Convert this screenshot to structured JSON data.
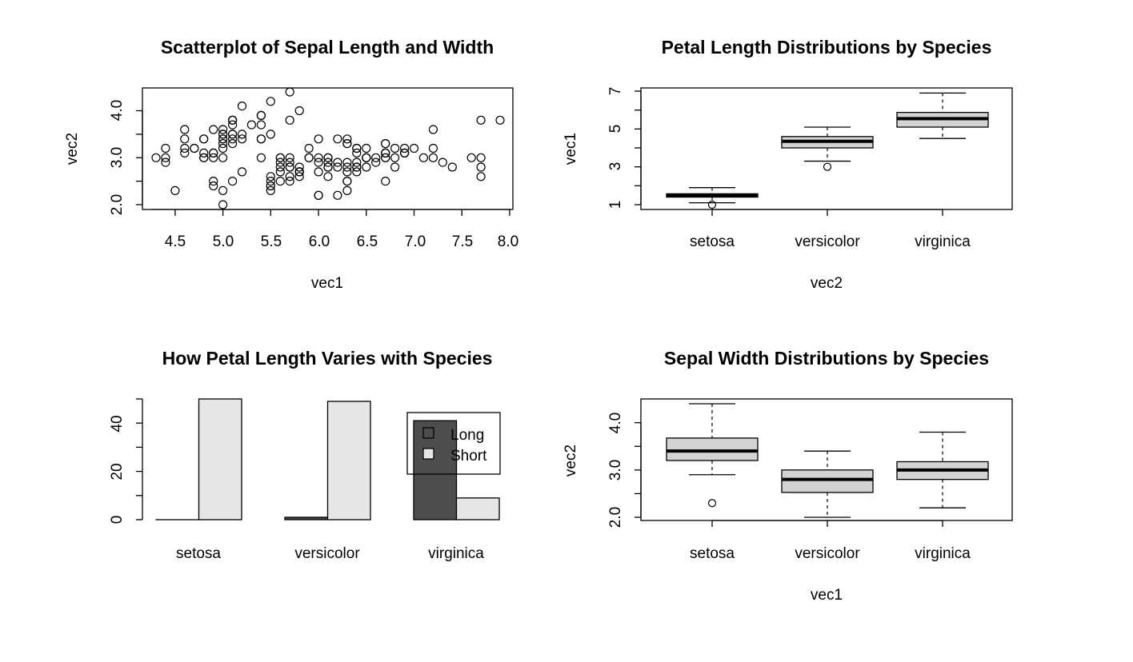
{
  "chart_data": [
    {
      "type": "scatter",
      "title": "Scatterplot of Sepal Length and Width",
      "xlabel": "vec1",
      "ylabel": "vec2",
      "xlim": [
        4.3,
        7.9
      ],
      "ylim": [
        2.0,
        4.4
      ],
      "xticks": [
        "4.5",
        "5.0",
        "5.5",
        "6.0",
        "6.5",
        "7.0",
        "7.5",
        "8.0"
      ],
      "yticks": [
        "2.0",
        "3.0",
        "4.0"
      ],
      "points": [
        [
          5.1,
          3.5
        ],
        [
          4.9,
          3.0
        ],
        [
          4.7,
          3.2
        ],
        [
          4.6,
          3.1
        ],
        [
          5.0,
          3.6
        ],
        [
          5.4,
          3.9
        ],
        [
          4.6,
          3.4
        ],
        [
          5.0,
          3.4
        ],
        [
          4.4,
          2.9
        ],
        [
          4.9,
          3.1
        ],
        [
          5.4,
          3.7
        ],
        [
          4.8,
          3.4
        ],
        [
          4.8,
          3.0
        ],
        [
          4.3,
          3.0
        ],
        [
          5.8,
          4.0
        ],
        [
          5.7,
          4.4
        ],
        [
          5.4,
          3.9
        ],
        [
          5.1,
          3.5
        ],
        [
          5.7,
          3.8
        ],
        [
          5.1,
          3.8
        ],
        [
          5.4,
          3.4
        ],
        [
          5.1,
          3.7
        ],
        [
          4.6,
          3.6
        ],
        [
          5.1,
          3.3
        ],
        [
          4.8,
          3.4
        ],
        [
          5.0,
          3.0
        ],
        [
          5.0,
          3.4
        ],
        [
          5.2,
          3.5
        ],
        [
          5.2,
          3.4
        ],
        [
          4.7,
          3.2
        ],
        [
          4.8,
          3.1
        ],
        [
          5.4,
          3.4
        ],
        [
          5.2,
          4.1
        ],
        [
          5.5,
          4.2
        ],
        [
          4.9,
          3.1
        ],
        [
          5.0,
          3.2
        ],
        [
          5.5,
          3.5
        ],
        [
          4.9,
          3.6
        ],
        [
          4.4,
          3.0
        ],
        [
          5.1,
          3.4
        ],
        [
          5.0,
          3.5
        ],
        [
          4.5,
          2.3
        ],
        [
          4.4,
          3.2
        ],
        [
          5.0,
          3.5
        ],
        [
          5.1,
          3.8
        ],
        [
          4.8,
          3.0
        ],
        [
          5.1,
          3.8
        ],
        [
          4.6,
          3.2
        ],
        [
          5.3,
          3.7
        ],
        [
          5.0,
          3.3
        ],
        [
          7.0,
          3.2
        ],
        [
          6.4,
          3.2
        ],
        [
          6.9,
          3.1
        ],
        [
          5.5,
          2.3
        ],
        [
          6.5,
          2.8
        ],
        [
          5.7,
          2.8
        ],
        [
          6.3,
          3.3
        ],
        [
          4.9,
          2.4
        ],
        [
          6.6,
          2.9
        ],
        [
          5.2,
          2.7
        ],
        [
          5.0,
          2.0
        ],
        [
          5.9,
          3.0
        ],
        [
          6.0,
          2.2
        ],
        [
          6.1,
          2.9
        ],
        [
          5.6,
          2.9
        ],
        [
          6.7,
          3.1
        ],
        [
          5.6,
          3.0
        ],
        [
          5.8,
          2.7
        ],
        [
          6.2,
          2.2
        ],
        [
          5.6,
          2.5
        ],
        [
          5.9,
          3.2
        ],
        [
          6.1,
          2.8
        ],
        [
          6.3,
          2.5
        ],
        [
          6.1,
          2.8
        ],
        [
          6.4,
          2.9
        ],
        [
          6.6,
          3.0
        ],
        [
          6.8,
          2.8
        ],
        [
          6.7,
          3.0
        ],
        [
          6.0,
          2.9
        ],
        [
          5.7,
          2.6
        ],
        [
          5.5,
          2.4
        ],
        [
          5.5,
          2.4
        ],
        [
          5.8,
          2.7
        ],
        [
          6.0,
          2.7
        ],
        [
          5.4,
          3.0
        ],
        [
          6.0,
          3.4
        ],
        [
          6.7,
          3.1
        ],
        [
          6.3,
          2.3
        ],
        [
          5.6,
          3.0
        ],
        [
          5.5,
          2.5
        ],
        [
          5.5,
          2.6
        ],
        [
          6.1,
          3.0
        ],
        [
          5.8,
          2.6
        ],
        [
          5.0,
          2.3
        ],
        [
          5.6,
          2.7
        ],
        [
          5.7,
          3.0
        ],
        [
          5.7,
          2.9
        ],
        [
          6.2,
          2.9
        ],
        [
          5.1,
          2.5
        ],
        [
          5.7,
          2.8
        ],
        [
          6.3,
          3.3
        ],
        [
          5.8,
          2.7
        ],
        [
          7.1,
          3.0
        ],
        [
          6.3,
          2.9
        ],
        [
          6.5,
          3.0
        ],
        [
          7.6,
          3.0
        ],
        [
          4.9,
          2.5
        ],
        [
          7.3,
          2.9
        ],
        [
          6.7,
          2.5
        ],
        [
          7.2,
          3.6
        ],
        [
          6.5,
          3.2
        ],
        [
          6.4,
          2.7
        ],
        [
          6.8,
          3.0
        ],
        [
          5.7,
          2.5
        ],
        [
          5.8,
          2.8
        ],
        [
          6.4,
          3.2
        ],
        [
          6.5,
          3.0
        ],
        [
          7.7,
          3.8
        ],
        [
          7.7,
          2.6
        ],
        [
          6.0,
          2.2
        ],
        [
          6.9,
          3.2
        ],
        [
          5.6,
          2.8
        ],
        [
          7.7,
          2.8
        ],
        [
          6.3,
          2.7
        ],
        [
          6.7,
          3.3
        ],
        [
          7.2,
          3.2
        ],
        [
          6.2,
          2.8
        ],
        [
          6.1,
          3.0
        ],
        [
          6.4,
          2.8
        ],
        [
          7.2,
          3.0
        ],
        [
          7.4,
          2.8
        ],
        [
          7.9,
          3.8
        ],
        [
          6.4,
          2.8
        ],
        [
          6.3,
          2.8
        ],
        [
          6.1,
          2.6
        ],
        [
          7.7,
          3.0
        ],
        [
          6.3,
          3.4
        ],
        [
          6.4,
          3.1
        ],
        [
          6.0,
          3.0
        ],
        [
          6.9,
          3.1
        ],
        [
          6.7,
          3.1
        ],
        [
          6.9,
          3.1
        ],
        [
          5.8,
          2.7
        ],
        [
          6.8,
          3.2
        ],
        [
          6.7,
          3.3
        ],
        [
          6.7,
          3.0
        ],
        [
          6.3,
          2.5
        ],
        [
          6.5,
          3.0
        ],
        [
          6.2,
          3.4
        ],
        [
          5.9,
          3.0
        ]
      ]
    },
    {
      "type": "boxplot",
      "title": "Petal Length Distributions by Species",
      "xlabel": "vec2",
      "ylabel": "vec1",
      "ylim": [
        1,
        6.9
      ],
      "yticks": [
        "1",
        "3",
        "5",
        "7"
      ],
      "categories": [
        "setosa",
        "versicolor",
        "virginica"
      ],
      "boxes": [
        {
          "whisker_low": 1.1,
          "q1": 1.4,
          "median": 1.5,
          "q3": 1.575,
          "whisker_high": 1.9,
          "outliers": [
            1.0
          ]
        },
        {
          "whisker_low": 3.3,
          "q1": 4.0,
          "median": 4.35,
          "q3": 4.6,
          "whisker_high": 5.1,
          "outliers": [
            3.0
          ]
        },
        {
          "whisker_low": 4.5,
          "q1": 5.1,
          "median": 5.55,
          "q3": 5.875,
          "whisker_high": 6.9,
          "outliers": []
        }
      ]
    },
    {
      "type": "bar",
      "title": "How Petal Length Varies with Species",
      "ylim": [
        0,
        50
      ],
      "yticks": [
        "0",
        "20",
        "40"
      ],
      "categories": [
        "setosa",
        "versicolor",
        "virginica"
      ],
      "series": [
        {
          "name": "Long",
          "color": "#4d4d4d",
          "values": [
            0,
            1,
            41
          ]
        },
        {
          "name": "Short",
          "color": "#e6e6e6",
          "values": [
            50,
            49,
            9
          ]
        }
      ],
      "legend": {
        "position": "top-right",
        "entries": [
          "Long",
          "Short"
        ]
      }
    },
    {
      "type": "boxplot",
      "title": "Sepal Width Distributions by Species",
      "xlabel": "vec1",
      "ylabel": "vec2",
      "ylim": [
        2.0,
        4.4
      ],
      "yticks": [
        "2.0",
        "3.0",
        "4.0"
      ],
      "categories": [
        "setosa",
        "versicolor",
        "virginica"
      ],
      "boxes": [
        {
          "whisker_low": 2.9,
          "q1": 3.2,
          "median": 3.4,
          "q3": 3.675,
          "whisker_high": 4.4,
          "outliers": [
            2.3
          ]
        },
        {
          "whisker_low": 2.0,
          "q1": 2.525,
          "median": 2.8,
          "q3": 3.0,
          "whisker_high": 3.4,
          "outliers": []
        },
        {
          "whisker_low": 2.2,
          "q1": 2.8,
          "median": 3.0,
          "q3": 3.175,
          "whisker_high": 3.8,
          "outliers": []
        }
      ]
    }
  ],
  "colors": {
    "box_fill": "#d3d3d3",
    "median": "#000000",
    "bar_long": "#4d4d4d",
    "bar_short": "#e6e6e6"
  }
}
